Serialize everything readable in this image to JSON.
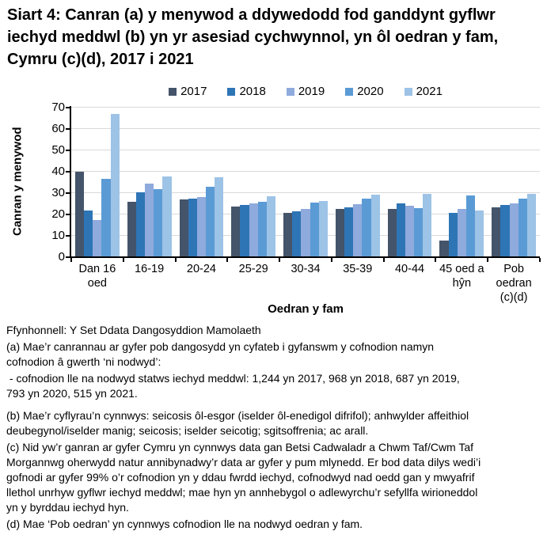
{
  "title": "Siart 4: Canran (a) y menywod a ddywedodd fod ganddynt gyflwr iechyd meddwl (b) yn yr asesiad cychwynnol, yn ôl oedran y fam, Cymru (c)(d), 2017 i 2021",
  "chart_data": {
    "type": "bar",
    "title": "Siart 4: Canran (a) y menywod a ddywedodd fod ganddynt gyflwr iechyd meddwl (b) yn yr asesiad cychwynnol, yn ôl oedran y fam, Cymru (c)(d), 2017 i 2021",
    "xlabel": "Oedran y fam",
    "ylabel": "Canran y menywod",
    "ylim": [
      0,
      70
    ],
    "ytick_step": 10,
    "grid": true,
    "legend_position": "top",
    "categories": [
      "Dan 16 oed",
      "16-19",
      "20-24",
      "25-29",
      "30-34",
      "35-39",
      "40-44",
      "45 oed a hŷn",
      "Pob oedran (c)(d)"
    ],
    "series": [
      {
        "name": "2017",
        "color": "#44546A",
        "values": [
          39.5,
          25.6,
          26.7,
          23.4,
          20.5,
          22.3,
          22.3,
          7.5,
          22.9
        ]
      },
      {
        "name": "2018",
        "color": "#2E75B6",
        "values": [
          21.6,
          29.9,
          27.1,
          24.1,
          21.3,
          23.0,
          24.8,
          20.3,
          24.0
        ]
      },
      {
        "name": "2019",
        "color": "#8FAADC",
        "values": [
          17.2,
          34.2,
          27.9,
          24.8,
          22.2,
          24.4,
          23.7,
          22.3,
          24.8
        ]
      },
      {
        "name": "2020",
        "color": "#5B9BD5",
        "values": [
          36.4,
          31.5,
          32.7,
          25.6,
          25.2,
          27.1,
          22.7,
          28.6,
          27.1
        ]
      },
      {
        "name": "2021",
        "color": "#9DC3E6",
        "values": [
          66.6,
          37.5,
          37.2,
          28.2,
          26.0,
          29.0,
          29.3,
          21.6,
          29.4
        ]
      }
    ],
    "axis_color": "#000000",
    "gridline_color": "#D9D9D9"
  },
  "footnotes": [
    {
      "text": "Ffynhonnell: Y Set Ddata Dangosyddion Mamolaeth"
    },
    {
      "text": "(a) Mae’r canrannau ar gyfer pob dangosydd yn cyfateb i gyfanswm y cofnodion namyn\ncofnodion â gwerth ‘ni nodwyd’:"
    },
    {
      "text": " - cofnodion lle na nodwyd statws iechyd meddwl: 1,244 yn 2017, 968 yn 2018, 687 yn 2019,\n793 yn 2020, 515 yn 2021."
    },
    {
      "text": "(b) Mae’r cyflyrau’n cynnwys: seicosis ôl-esgor (iselder ôl-enedigol difrifol); anhwylder affeithiol\ndeubegynol/iselder manig; seicosis; iselder seicotig; sgitsoffrenia; ac arall.",
      "gap_before": true
    },
    {
      "text": "(c) Nid yw’r ganran ar gyfer Cymru yn cynnwys data gan Betsi Cadwaladr a Chwm Taf/Cwm Taf\nMorgannwg oherwydd natur annibynadwy’r data ar gyfer y pum mlynedd. Er bod data dilys wedi’i\ngofnodi ar gyfer 99% o’r cofnodion yn y ddau fwrdd iechyd, cofnodwyd nad oedd gan y mwyafrif\nllethol unrhyw gyflwr iechyd meddwl; mae hyn yn annhebygol o adlewyrchu’r sefyllfa wirioneddol\nyn y byrddau iechyd hyn."
    },
    {
      "text": "(d) Mae ‘Pob oedran’ yn cynnwys cofnodion lle na nodwyd oedran y fam."
    }
  ]
}
